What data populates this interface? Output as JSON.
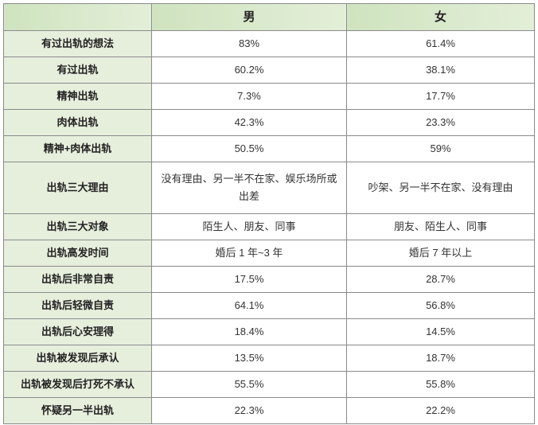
{
  "chart_data": {
    "type": "table",
    "columns": [
      "",
      "男",
      "女"
    ],
    "rows": [
      {
        "label": "有过出轨的想法",
        "male": "83%",
        "female": "61.4%"
      },
      {
        "label": "有过出轨",
        "male": "60.2%",
        "female": "38.1%"
      },
      {
        "label": "精神出轨",
        "male": "7.3%",
        "female": "17.7%"
      },
      {
        "label": "肉体出轨",
        "male": "42.3%",
        "female": "23.3%"
      },
      {
        "label": "精神+肉体出轨",
        "male": "50.5%",
        "female": "59%"
      },
      {
        "label": "出轨三大理由",
        "male": "没有理由、另一半不在家、娱乐场所或出差",
        "female": "吵架、另一半不在家、没有理由"
      },
      {
        "label": "出轨三大对象",
        "male": "陌生人、朋友、同事",
        "female": "朋友、陌生人、同事"
      },
      {
        "label": "出轨高发时间",
        "male": "婚后 1 年~3 年",
        "female": "婚后 7 年以上"
      },
      {
        "label": "出轨后非常自责",
        "male": "17.5%",
        "female": "28.7%"
      },
      {
        "label": "出轨后轻微自责",
        "male": "64.1%",
        "female": "56.8%"
      },
      {
        "label": "出轨后心安理得",
        "male": "18.4%",
        "female": "14.5%"
      },
      {
        "label": "出轨被发现后承认",
        "male": "13.5%",
        "female": "18.7%"
      },
      {
        "label": "出轨被发现后打死不承认",
        "male": "55.5%",
        "female": "55.8%"
      },
      {
        "label": "怀疑另一半出轨",
        "male": "22.3%",
        "female": "22.2%"
      }
    ],
    "colors": {
      "header": "#d5e8c6",
      "label_column": "#e6efdc",
      "border": "#8a8a8a"
    }
  }
}
